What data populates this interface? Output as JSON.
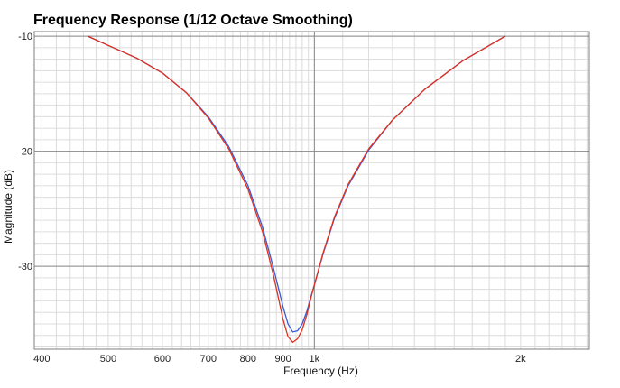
{
  "chart_data": {
    "type": "line",
    "title": "Frequency Response (1/12 Octave Smoothing)",
    "xlabel": "Frequency (Hz)",
    "ylabel": "Magnitude (dB)",
    "x_scale": "log",
    "xlim": [
      390,
      2520
    ],
    "ylim": [
      -37.2,
      -9.6
    ],
    "x_major_ticks": [
      1000
    ],
    "y_major_ticks": [
      -10,
      -20,
      -30
    ],
    "x_tick_labels": [
      {
        "value": 400,
        "label": "400"
      },
      {
        "value": 500,
        "label": "500"
      },
      {
        "value": 600,
        "label": "600"
      },
      {
        "value": 700,
        "label": "700"
      },
      {
        "value": 800,
        "label": "800"
      },
      {
        "value": 900,
        "label": "900"
      },
      {
        "value": 1000,
        "label": "1k"
      },
      {
        "value": 2000,
        "label": "2k"
      }
    ],
    "y_tick_labels": [
      {
        "value": -10,
        "label": "-10"
      },
      {
        "value": -20,
        "label": "-20"
      },
      {
        "value": -30,
        "label": "-30"
      }
    ],
    "grid": true,
    "series": [
      {
        "color": "#3a5bd9",
        "x": [
          467,
          500,
          550,
          600,
          650,
          700,
          750,
          800,
          840,
          870,
          900,
          915,
          930,
          945,
          960,
          975,
          990,
          1000,
          1030,
          1070,
          1120,
          1200,
          1300,
          1450,
          1650,
          1900
        ],
        "y": [
          -10.0,
          -10.8,
          -11.9,
          -13.2,
          -14.9,
          -17.0,
          -19.6,
          -23.0,
          -26.6,
          -30.0,
          -33.5,
          -35.0,
          -35.7,
          -35.6,
          -35.0,
          -33.9,
          -32.5,
          -31.6,
          -28.9,
          -25.8,
          -23.0,
          -19.9,
          -17.3,
          -14.6,
          -12.1,
          -10.0
        ]
      },
      {
        "color": "#e0301e",
        "x": [
          467,
          500,
          550,
          600,
          650,
          700,
          750,
          800,
          840,
          870,
          900,
          915,
          930,
          945,
          960,
          975,
          990,
          1000,
          1030,
          1070,
          1120,
          1200,
          1300,
          1450,
          1650,
          1900
        ],
        "y": [
          -10.0,
          -10.8,
          -11.9,
          -13.2,
          -14.9,
          -17.1,
          -19.8,
          -23.3,
          -27.0,
          -30.6,
          -34.6,
          -36.1,
          -36.6,
          -36.3,
          -35.5,
          -34.2,
          -32.6,
          -31.6,
          -28.8,
          -25.7,
          -22.9,
          -19.8,
          -17.3,
          -14.6,
          -12.1,
          -10.0
        ]
      }
    ]
  }
}
